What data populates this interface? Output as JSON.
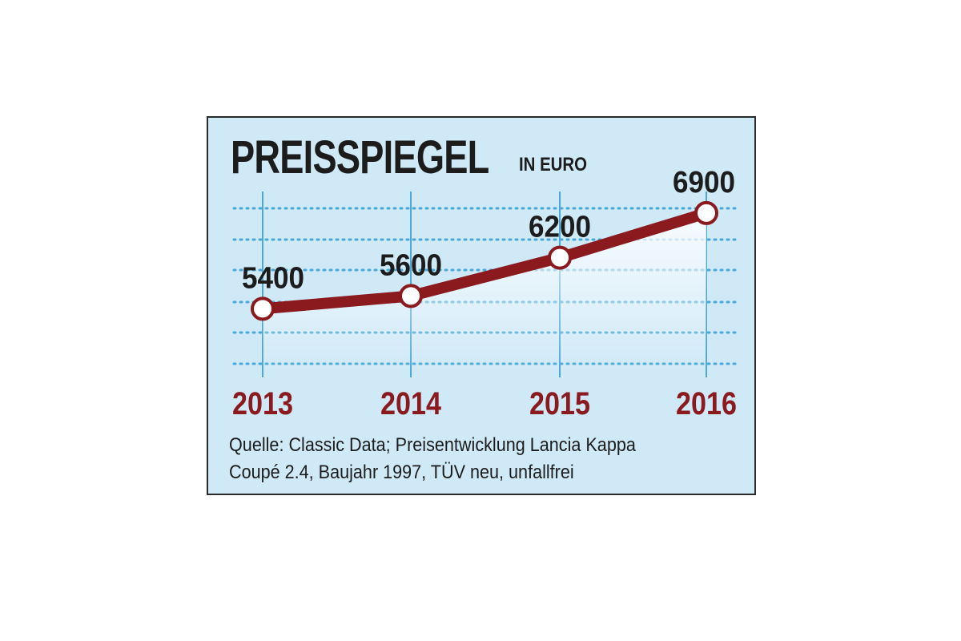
{
  "title": "PREISSPIEGEL",
  "subtitle": "IN EURO",
  "footnote_line1": "Quelle: Classic Data; Preisentwicklung Lancia Kappa",
  "footnote_line2": "Coupé 2.4, Baujahr 1997, TÜV neu, unfallfrei",
  "colors": {
    "background": "#cfe9f7",
    "line": "#8b1a1f",
    "grid": "#4aa8d8",
    "text": "#1c1c1c",
    "marker_fill": "#ffffff"
  },
  "chart_data": {
    "type": "line",
    "categories": [
      "2013",
      "2014",
      "2015",
      "2016"
    ],
    "series": [
      {
        "values": [
          5400,
          5600,
          6200,
          6900
        ]
      }
    ],
    "value_labels": [
      "5400",
      "5600",
      "6200",
      "6900"
    ],
    "ylim": [
      4500,
      7200
    ],
    "grid": true,
    "xlabel": "",
    "ylabel": ""
  }
}
